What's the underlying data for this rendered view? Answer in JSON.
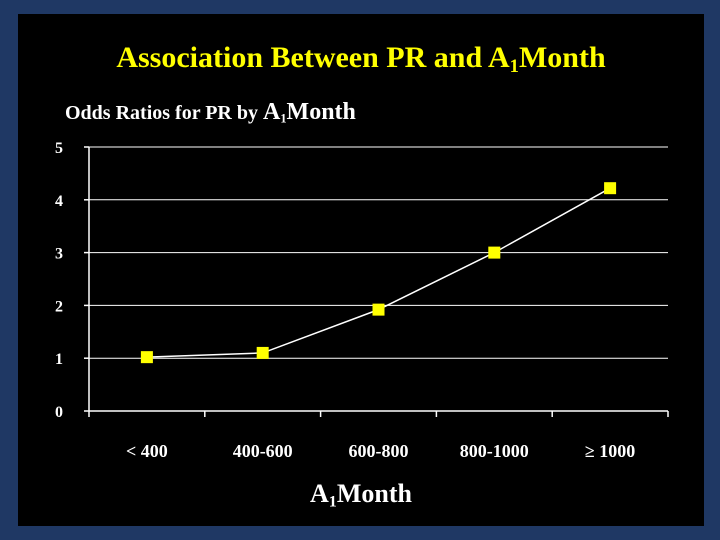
{
  "title": {
    "prefix": "Association Between PR and A",
    "sub": "1",
    "suffix": "Month"
  },
  "subtitle": {
    "prefix": "Odds Ratios for PR by ",
    "big": "A",
    "sub": "1",
    "suffix": "Month"
  },
  "xlabel": {
    "prefix": "A",
    "sub": "1",
    "suffix": "Month"
  },
  "colors": {
    "background_border": "#1f3864",
    "plot_background": "#000000",
    "title": "#ffff00",
    "marker": "#ffff00",
    "line": "#ffffff",
    "text": "#ffffff"
  },
  "chart_data": {
    "type": "line",
    "categories": [
      "< 400",
      "400-600",
      "600-800",
      "800-1000",
      "≥ 1000"
    ],
    "series": [
      {
        "values": [
          1.02,
          1.1,
          1.92,
          3.0,
          4.22
        ]
      }
    ],
    "ylim": [
      0,
      5
    ],
    "yticks": [
      0,
      1,
      2,
      3,
      4,
      5
    ],
    "grid": true,
    "legend": "none"
  }
}
